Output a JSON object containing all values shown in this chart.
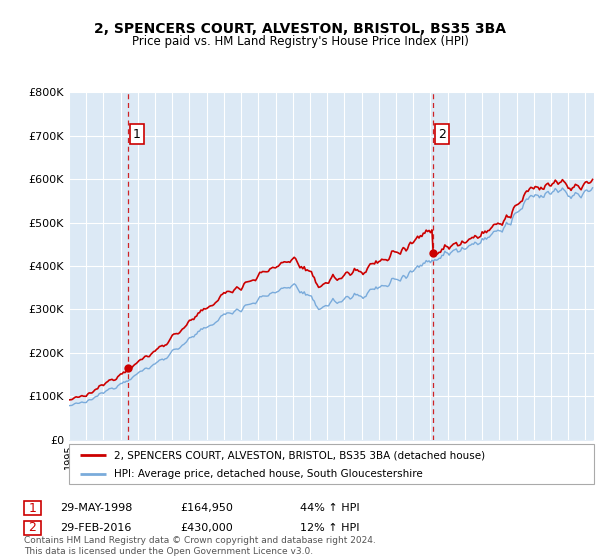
{
  "title": "2, SPENCERS COURT, ALVESTON, BRISTOL, BS35 3BA",
  "subtitle": "Price paid vs. HM Land Registry's House Price Index (HPI)",
  "sale1_date": "29-MAY-1998",
  "sale1_price": 164950,
  "sale1_label": "1",
  "sale1_hpi_pct": "44% ↑ HPI",
  "sale2_date": "29-FEB-2016",
  "sale2_price": 430000,
  "sale2_label": "2",
  "sale2_hpi_pct": "12% ↑ HPI",
  "legend_property": "2, SPENCERS COURT, ALVESTON, BRISTOL, BS35 3BA (detached house)",
  "legend_hpi": "HPI: Average price, detached house, South Gloucestershire",
  "footer": "Contains HM Land Registry data © Crown copyright and database right 2024.\nThis data is licensed under the Open Government Licence v3.0.",
  "property_color": "#cc0000",
  "hpi_color": "#7aabdb",
  "hpi_fill_color": "#dce9f5",
  "sale1_x": 1998.42,
  "sale2_x": 2016.16,
  "ylim_top": 800000,
  "ylim_bottom": 0,
  "xmin": 1995.0,
  "xmax": 2025.5,
  "background_color": "#ffffff",
  "plot_bg_color": "#dce9f5"
}
